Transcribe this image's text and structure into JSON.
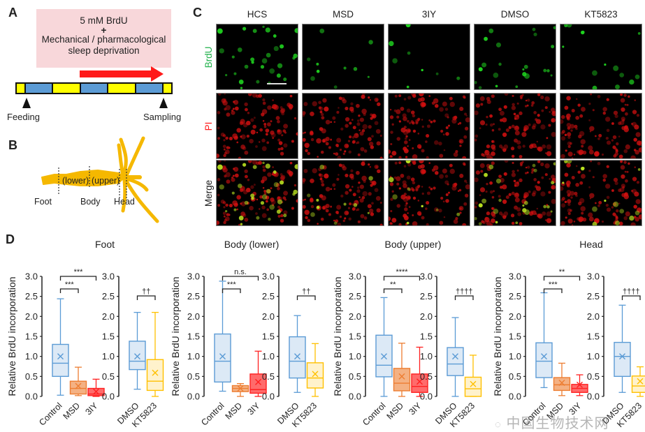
{
  "panels": {
    "A": {
      "letter": "A",
      "box_line1": "5 mM BrdU",
      "box_line2": "+",
      "box_line3": "Mechanical / pharmacological",
      "box_line4": "sleep deprivation",
      "feeding": "Feeding",
      "sampling": "Sampling",
      "colors": {
        "day": "#ffff00",
        "night": "#5b9bd5",
        "arrow": "#ff1a1a",
        "box": "#f8d7da"
      }
    },
    "B": {
      "letter": "B",
      "lower": "(lower)",
      "upper": "(upper)",
      "foot": "Foot",
      "body": "Body",
      "head": "Head",
      "color": "#f5b800"
    },
    "C": {
      "letter": "C",
      "columns": [
        "HCS",
        "MSD",
        "3IY",
        "DMSO",
        "KT5823"
      ],
      "rows": [
        {
          "label": "BrdU",
          "color": "#22b14c"
        },
        {
          "label": "PI",
          "color": "#ff1a1a"
        },
        {
          "label": "Merge",
          "color": "#222222"
        }
      ]
    },
    "D": {
      "letter": "D"
    }
  },
  "chart_data": [
    {
      "type": "box",
      "title": "Foot",
      "ylabel": "Relative BrdU incorporation",
      "ylim": [
        0,
        3.0
      ],
      "yticks": [
        "0.0",
        "0.5",
        "1.0",
        "1.5",
        "2.0",
        "2.5",
        "3.0"
      ],
      "groups": [
        {
          "categories": [
            "Control",
            "MSD",
            "3IY"
          ],
          "boxes": [
            {
              "name": "Control",
              "min": 0.03,
              "q1": 0.5,
              "median": 0.83,
              "q3": 1.3,
              "max": 2.44,
              "mean": 1.0
            },
            {
              "name": "MSD",
              "min": 0.02,
              "q1": 0.06,
              "median": 0.2,
              "q3": 0.38,
              "max": 0.73,
              "mean": 0.26
            },
            {
              "name": "3IY",
              "min": 0.0,
              "q1": 0.02,
              "median": 0.06,
              "q3": 0.2,
              "max": 0.43,
              "mean": 0.12
            }
          ],
          "brackets": [
            {
              "from": "Control",
              "to": "MSD",
              "label": "***"
            },
            {
              "from": "Control",
              "to": "3IY",
              "label": "***"
            }
          ]
        },
        {
          "categories": [
            "DMSO",
            "KT5823"
          ],
          "boxes": [
            {
              "name": "DMSO",
              "min": 0.18,
              "q1": 0.67,
              "median": 0.88,
              "q3": 1.38,
              "max": 2.1,
              "mean": 1.0
            },
            {
              "name": "KT5823",
              "min": 0.0,
              "q1": 0.15,
              "median": 0.38,
              "q3": 0.92,
              "max": 2.1,
              "mean": 0.59
            }
          ],
          "brackets": [
            {
              "from": "DMSO",
              "to": "KT5823",
              "label": "††"
            }
          ]
        }
      ]
    },
    {
      "type": "box",
      "title": "Body (lower)",
      "ylabel": "Relative BrdU incorporation",
      "ylim": [
        0,
        3.0
      ],
      "yticks": [
        "0.0",
        "0.5",
        "1.0",
        "1.5",
        "2.0",
        "2.5",
        "3.0"
      ],
      "groups": [
        {
          "categories": [
            "Control",
            "MSD",
            "3IY"
          ],
          "boxes": [
            {
              "name": "Control",
              "min": 0.13,
              "q1": 0.36,
              "median": 0.88,
              "q3": 1.56,
              "max": 2.88,
              "mean": 1.0
            },
            {
              "name": "MSD",
              "min": 0.0,
              "q1": 0.12,
              "median": 0.2,
              "q3": 0.27,
              "max": 0.32,
              "mean": 0.2
            },
            {
              "name": "3IY",
              "min": 0.0,
              "q1": 0.08,
              "median": 0.17,
              "q3": 0.56,
              "max": 1.13,
              "mean": 0.36
            }
          ],
          "brackets": [
            {
              "from": "Control",
              "to": "MSD",
              "label": "***"
            },
            {
              "from": "Control",
              "to": "3IY",
              "label": "n.s."
            }
          ]
        },
        {
          "categories": [
            "DMSO",
            "KT5823"
          ],
          "boxes": [
            {
              "name": "DMSO",
              "min": 0.1,
              "q1": 0.46,
              "median": 0.88,
              "q3": 1.49,
              "max": 2.02,
              "mean": 1.0
            },
            {
              "name": "KT5823",
              "min": 0.0,
              "q1": 0.21,
              "median": 0.46,
              "q3": 0.84,
              "max": 1.32,
              "mean": 0.56
            }
          ],
          "brackets": [
            {
              "from": "DMSO",
              "to": "KT5823",
              "label": "††"
            }
          ]
        }
      ]
    },
    {
      "type": "box",
      "title": "Body (upper)",
      "ylabel": "Relative BrdU incorporation",
      "ylim": [
        0,
        3.0
      ],
      "yticks": [
        "0.0",
        "0.5",
        "1.0",
        "1.5",
        "2.0",
        "2.5",
        "3.0"
      ],
      "groups": [
        {
          "categories": [
            "Control",
            "MSD",
            "3IY"
          ],
          "boxes": [
            {
              "name": "Control",
              "min": 0.0,
              "q1": 0.49,
              "median": 0.78,
              "q3": 1.53,
              "max": 2.47,
              "mean": 1.0
            },
            {
              "name": "MSD",
              "min": 0.0,
              "q1": 0.14,
              "median": 0.33,
              "q3": 0.7,
              "max": 1.33,
              "mean": 0.5
            },
            {
              "name": "3IY",
              "min": 0.0,
              "q1": 0.1,
              "median": 0.25,
              "q3": 0.56,
              "max": 1.23,
              "mean": 0.37
            }
          ],
          "brackets": [
            {
              "from": "Control",
              "to": "MSD",
              "label": "**"
            },
            {
              "from": "Control",
              "to": "3IY",
              "label": "****"
            }
          ]
        },
        {
          "categories": [
            "DMSO",
            "KT5823"
          ],
          "boxes": [
            {
              "name": "DMSO",
              "min": 0.0,
              "q1": 0.52,
              "median": 0.81,
              "q3": 1.22,
              "max": 1.97,
              "mean": 1.0
            },
            {
              "name": "KT5823",
              "min": 0.0,
              "q1": 0.0,
              "median": 0.19,
              "q3": 0.48,
              "max": 1.03,
              "mean": 0.31
            }
          ],
          "brackets": [
            {
              "from": "DMSO",
              "to": "KT5823",
              "label": "††††"
            }
          ]
        }
      ]
    },
    {
      "type": "box",
      "title": "Head",
      "ylabel": "Relative BrdU incorporation",
      "ylim": [
        0,
        3.0
      ],
      "yticks": [
        "0.0",
        "0.5",
        "1.0",
        "1.5",
        "2.0",
        "2.5",
        "3.0"
      ],
      "groups": [
        {
          "categories": [
            "Control",
            "MSD",
            "3IY"
          ],
          "boxes": [
            {
              "name": "Control",
              "min": 0.22,
              "q1": 0.47,
              "median": 0.88,
              "q3": 1.34,
              "max": 2.59,
              "mean": 1.0
            },
            {
              "name": "MSD",
              "min": 0.02,
              "q1": 0.15,
              "median": 0.29,
              "q3": 0.47,
              "max": 0.83,
              "mean": 0.34
            },
            {
              "name": "3IY",
              "min": 0.02,
              "q1": 0.1,
              "median": 0.2,
              "q3": 0.3,
              "max": 0.54,
              "mean": 0.29
            }
          ],
          "brackets": [
            {
              "from": "Control",
              "to": "MSD",
              "label": "***"
            },
            {
              "from": "Control",
              "to": "3IY",
              "label": "**"
            }
          ]
        },
        {
          "categories": [
            "DMSO",
            "KT5823"
          ],
          "boxes": [
            {
              "name": "DMSO",
              "min": 0.1,
              "q1": 0.5,
              "median": 1.0,
              "q3": 1.35,
              "max": 2.28,
              "mean": 1.0
            },
            {
              "name": "KT5823",
              "min": 0.0,
              "q1": 0.1,
              "median": 0.26,
              "q3": 0.51,
              "max": 0.74,
              "mean": 0.38
            }
          ],
          "brackets": [
            {
              "from": "DMSO",
              "to": "KT5823",
              "label": "††††"
            }
          ]
        }
      ]
    }
  ],
  "colors": {
    "Control": {
      "stroke": "#5b9bd5",
      "fill": "#dce9f6"
    },
    "DMSO": {
      "stroke": "#5b9bd5",
      "fill": "#dce9f6"
    },
    "MSD": {
      "stroke": "#ed7d31",
      "fill": "#f4b183"
    },
    "3IY": {
      "stroke": "#ff2020",
      "fill": "#ff6b6b"
    },
    "KT5823": {
      "stroke": "#ffc000",
      "fill": "#fff2cc"
    }
  },
  "watermark": "中国生物技术网"
}
